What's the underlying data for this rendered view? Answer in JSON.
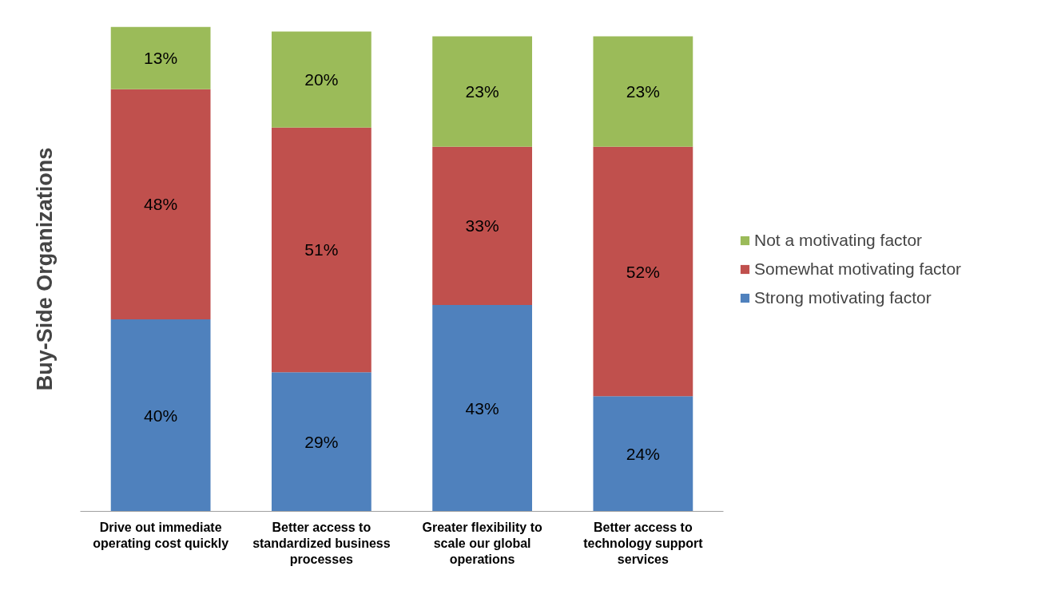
{
  "chart_data": {
    "type": "bar",
    "stacked": true,
    "ylabel": "Buy-Side Organizations",
    "categories": [
      "Drive out immediate operating cost quickly",
      "Better access to standardized business processes",
      "Greater flexibility to scale our global operations",
      "Better access to technology support services"
    ],
    "series": [
      {
        "name": "Strong motivating factor",
        "color": "#4f81bd",
        "values": [
          40,
          29,
          43,
          24
        ],
        "value_labels": [
          "40%",
          "29%",
          "43%",
          "24%"
        ]
      },
      {
        "name": "Somewhat motivating factor",
        "color": "#c0504d",
        "values": [
          48,
          51,
          33,
          52
        ],
        "value_labels": [
          "48%",
          "51%",
          "33%",
          "52%"
        ]
      },
      {
        "name": "Not a motivating factor",
        "color": "#9bbb59",
        "values": [
          13,
          20,
          23,
          23
        ],
        "value_labels": [
          "13%",
          "20%",
          "23%",
          "23%"
        ]
      }
    ],
    "legend": "right",
    "grid": false
  }
}
